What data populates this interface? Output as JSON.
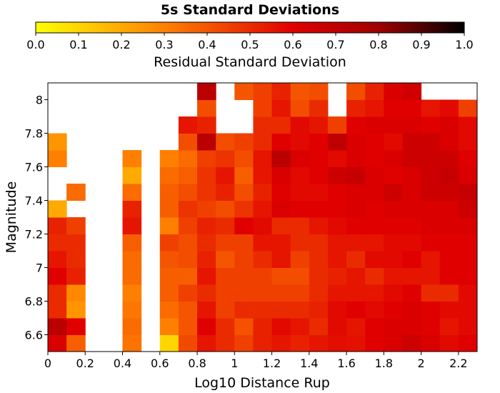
{
  "chart_data": {
    "type": "heatmap",
    "title": "5s Standard Deviations",
    "colorbar": {
      "label": "Residual Standard Deviation",
      "range": [
        0.0,
        1.0
      ],
      "ticks": [
        "0.0",
        "0.1",
        "0.2",
        "0.3",
        "0.4",
        "0.5",
        "0.6",
        "0.7",
        "0.8",
        "0.9",
        "1.0"
      ],
      "colormap": "hot_r"
    },
    "xlabel": "Log10 Distance Rup",
    "ylabel": "Magnitude",
    "xlim": [
      0,
      2.3
    ],
    "ylim": [
      6.5,
      8.1
    ],
    "x_ticks": [
      "0",
      "0.2",
      "0.4",
      "0.6",
      "0.8",
      "1",
      "1.2",
      "1.4",
      "1.6",
      "1.8",
      "2",
      "2.2"
    ],
    "y_ticks": [
      "6.6",
      "6.8",
      "7",
      "7.2",
      "7.4",
      "7.6",
      "7.8",
      "8"
    ],
    "cell_size": {
      "x": 0.1,
      "y": 0.1
    },
    "x_bin_starts": [
      0,
      0.1,
      0.2,
      0.3,
      0.4,
      0.5,
      0.6,
      0.7,
      0.8,
      0.9,
      1.0,
      1.1,
      1.2,
      1.3,
      1.4,
      1.5,
      1.6,
      1.7,
      1.8,
      1.9,
      2.0,
      2.1,
      2.2
    ],
    "y_bin_starts": [
      6.5,
      6.6,
      6.7,
      6.8,
      6.9,
      7.0,
      7.1,
      7.2,
      7.3,
      7.4,
      7.5,
      7.6,
      7.7,
      7.8,
      7.9,
      8.0
    ],
    "values": [
      [
        0.62,
        0.38,
        null,
        null,
        0.33,
        null,
        0.1,
        0.43,
        0.55,
        0.5,
        0.45,
        0.52,
        0.55,
        0.52,
        0.55,
        0.57,
        0.56,
        0.6,
        0.62,
        0.66,
        0.62,
        0.58,
        0.6
      ],
      [
        0.72,
        0.6,
        null,
        null,
        0.35,
        null,
        0.3,
        0.4,
        0.6,
        0.5,
        0.41,
        0.52,
        0.58,
        0.55,
        0.5,
        0.58,
        0.55,
        0.6,
        0.62,
        0.62,
        0.6,
        0.55,
        0.58
      ],
      [
        0.5,
        0.25,
        null,
        null,
        0.32,
        null,
        0.35,
        0.4,
        0.55,
        0.45,
        0.5,
        0.5,
        0.5,
        0.5,
        0.52,
        0.58,
        0.6,
        0.58,
        0.6,
        0.62,
        0.6,
        0.58,
        0.58
      ],
      [
        0.5,
        0.28,
        null,
        null,
        0.3,
        null,
        0.38,
        0.45,
        0.5,
        0.45,
        0.45,
        0.45,
        0.45,
        0.45,
        0.5,
        0.55,
        0.55,
        0.55,
        0.58,
        0.6,
        0.5,
        0.5,
        0.58
      ],
      [
        0.6,
        0.52,
        null,
        null,
        0.35,
        null,
        0.38,
        0.38,
        0.55,
        0.45,
        0.45,
        0.45,
        0.42,
        0.42,
        0.5,
        0.52,
        0.55,
        0.5,
        0.55,
        0.55,
        0.55,
        0.6,
        0.6
      ],
      [
        0.55,
        0.5,
        null,
        null,
        0.35,
        null,
        0.4,
        0.42,
        0.52,
        0.4,
        0.45,
        0.5,
        0.55,
        0.45,
        0.5,
        0.55,
        0.5,
        0.58,
        0.58,
        0.6,
        0.55,
        0.6,
        0.6
      ],
      [
        0.5,
        0.5,
        null,
        null,
        0.38,
        null,
        0.45,
        0.42,
        0.5,
        0.45,
        0.45,
        0.55,
        0.55,
        0.5,
        0.5,
        0.55,
        0.55,
        0.55,
        0.58,
        0.58,
        0.6,
        0.6,
        0.6
      ],
      [
        0.52,
        0.45,
        null,
        null,
        0.55,
        null,
        0.3,
        0.45,
        0.52,
        0.5,
        0.6,
        0.58,
        0.5,
        0.5,
        0.55,
        0.58,
        0.6,
        0.6,
        0.6,
        0.6,
        0.62,
        0.62,
        0.62
      ],
      [
        0.2,
        null,
        null,
        null,
        0.52,
        null,
        0.38,
        0.48,
        0.45,
        0.42,
        0.48,
        0.55,
        0.62,
        0.6,
        0.6,
        0.6,
        0.62,
        0.6,
        0.62,
        0.62,
        0.62,
        0.62,
        0.66
      ],
      [
        null,
        0.35,
        null,
        null,
        0.35,
        null,
        0.38,
        0.42,
        0.48,
        0.52,
        0.42,
        0.52,
        0.6,
        0.58,
        0.58,
        0.6,
        0.62,
        0.62,
        0.66,
        0.62,
        0.66,
        0.66,
        0.68
      ],
      [
        null,
        null,
        null,
        null,
        0.2,
        null,
        0.35,
        0.38,
        0.48,
        0.55,
        0.38,
        0.55,
        0.62,
        0.58,
        0.6,
        0.66,
        0.68,
        0.62,
        0.6,
        0.62,
        0.66,
        0.68,
        0.62
      ],
      [
        0.3,
        null,
        null,
        null,
        0.3,
        null,
        0.3,
        0.35,
        0.45,
        0.48,
        0.42,
        0.55,
        0.72,
        0.62,
        0.6,
        0.58,
        0.62,
        0.6,
        0.62,
        0.66,
        0.66,
        0.66,
        0.6
      ],
      [
        0.25,
        null,
        null,
        null,
        null,
        null,
        null,
        0.42,
        0.72,
        0.42,
        0.45,
        0.5,
        0.6,
        0.58,
        0.6,
        0.7,
        0.62,
        0.6,
        0.58,
        0.66,
        0.66,
        0.62,
        0.58
      ],
      [
        null,
        null,
        null,
        null,
        null,
        null,
        null,
        0.55,
        0.52,
        null,
        null,
        0.5,
        0.5,
        0.58,
        0.55,
        0.45,
        0.6,
        0.62,
        0.62,
        0.62,
        0.6,
        0.62,
        0.58
      ],
      [
        null,
        null,
        null,
        null,
        null,
        null,
        null,
        null,
        0.42,
        null,
        null,
        0.45,
        0.55,
        0.42,
        0.5,
        null,
        0.52,
        0.55,
        0.6,
        0.6,
        0.55,
        0.58,
        0.45
      ],
      [
        null,
        null,
        null,
        null,
        null,
        null,
        null,
        null,
        0.72,
        null,
        0.4,
        0.45,
        0.52,
        0.4,
        0.42,
        null,
        0.42,
        0.52,
        0.62,
        0.65,
        null,
        null,
        null
      ]
    ]
  }
}
